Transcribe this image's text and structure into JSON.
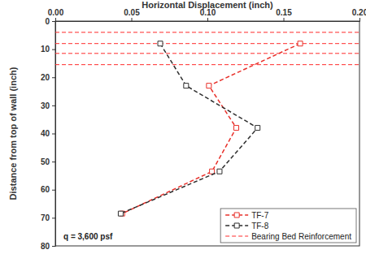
{
  "chart_data": {
    "type": "line",
    "x_label": "Horizontal Displacement (inch)",
    "y_label": "Distance from top of wall (inch)",
    "annotation": "q = 3,600 psf",
    "xlim": [
      0,
      0.2
    ],
    "xticks": [
      {
        "value": 0,
        "label": "0.00"
      },
      {
        "value": 0.05,
        "label": "0.05"
      },
      {
        "value": 0.1,
        "label": "0.10"
      },
      {
        "value": 0.15,
        "label": "0.15"
      },
      {
        "value": 0.2,
        "label": "0.20"
      }
    ],
    "ylim": [
      80,
      0
    ],
    "yticks": [
      0,
      10,
      20,
      30,
      40,
      50,
      60,
      70,
      80
    ],
    "grid": false,
    "legend": "lower right",
    "series": [
      {
        "name": "TF-7",
        "color": "#e8302a",
        "marker": "square",
        "line_style": "dashed",
        "x": [
          0.161,
          0.101,
          0.119,
          0.103,
          0.044
        ],
        "values": [
          8,
          23,
          38,
          53.5,
          68.5
        ]
      },
      {
        "name": "TF-8",
        "color": "#2e2e2e",
        "marker": "square",
        "line_style": "dashed",
        "x": [
          0.069,
          0.086,
          0.133,
          0.108,
          0.043
        ],
        "values": [
          8,
          23,
          38,
          53.5,
          68.5
        ]
      }
    ],
    "reference_lines": {
      "name": "Bearing Bed Reinforcement",
      "color": "#ff2a2a",
      "line_style": "dashed",
      "values": [
        4,
        8,
        11.5,
        15.5
      ]
    }
  }
}
